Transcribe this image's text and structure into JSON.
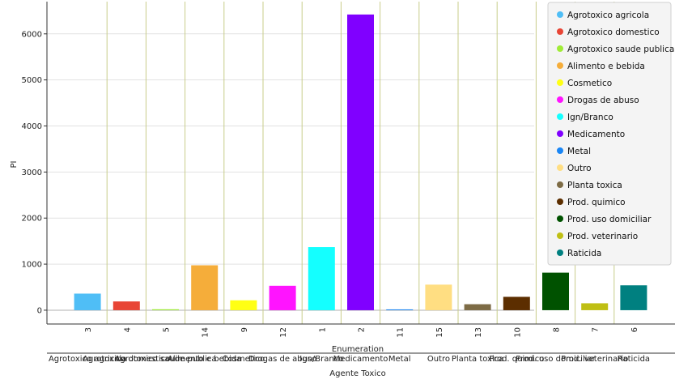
{
  "chart_data": {
    "type": "bar",
    "title": "",
    "ylabel": "PI",
    "xlabel_enum": "Enumeration",
    "xlabel": "Agente Toxico",
    "ylim": [
      -300,
      6700
    ],
    "yticks": [
      0,
      1000,
      2000,
      3000,
      4000,
      5000,
      6000
    ],
    "grid": true,
    "legend_position": "top-right",
    "categories": [
      "Agrotoxico agricola",
      "Agrotoxico domestico",
      "Agrotoxico saude publica",
      "Alimento e bebida",
      "Cosmetico",
      "Drogas de abuso",
      "Ign/Branco",
      "Medicamento",
      "Metal",
      "Outro",
      "Planta toxica",
      "Prod. quimico",
      "Prod. uso domiciliar",
      "Prod. veterinario",
      "Raticida"
    ],
    "enumeration": [
      "3",
      "4",
      "5",
      "14",
      "9",
      "12",
      "1",
      "2",
      "11",
      "15",
      "13",
      "10",
      "8",
      "7",
      "6"
    ],
    "values": [
      360,
      190,
      20,
      975,
      215,
      530,
      1370,
      6420,
      10,
      555,
      130,
      290,
      815,
      150,
      540
    ],
    "colors": [
      "#4fbef6",
      "#e84535",
      "#a0ec36",
      "#f5ad3a",
      "#ffff14",
      "#ff14ff",
      "#14ffff",
      "#8000ff",
      "#1a86f5",
      "#ffde82",
      "#7d6b45",
      "#5c2e00",
      "#005200",
      "#bfbf14",
      "#008080"
    ]
  },
  "legend": {
    "items": [
      {
        "label": "Agrotoxico agricola",
        "color": "#4fbef6"
      },
      {
        "label": "Agrotoxico domestico",
        "color": "#e84535"
      },
      {
        "label": "Agrotoxico saude publica",
        "color": "#a0ec36"
      },
      {
        "label": "Alimento e bebida",
        "color": "#f5ad3a"
      },
      {
        "label": "Cosmetico",
        "color": "#ffff14"
      },
      {
        "label": "Drogas de abuso",
        "color": "#ff14ff"
      },
      {
        "label": "Ign/Branco",
        "color": "#14ffff"
      },
      {
        "label": "Medicamento",
        "color": "#8000ff"
      },
      {
        "label": "Metal",
        "color": "#1a86f5"
      },
      {
        "label": "Outro",
        "color": "#ffde82"
      },
      {
        "label": "Planta toxica",
        "color": "#7d6b45"
      },
      {
        "label": "Prod. quimico",
        "color": "#5c2e00"
      },
      {
        "label": "Prod. uso domiciliar",
        "color": "#005200"
      },
      {
        "label": "Prod. veterinario",
        "color": "#bfbf14"
      },
      {
        "label": "Raticida",
        "color": "#008080"
      }
    ]
  }
}
